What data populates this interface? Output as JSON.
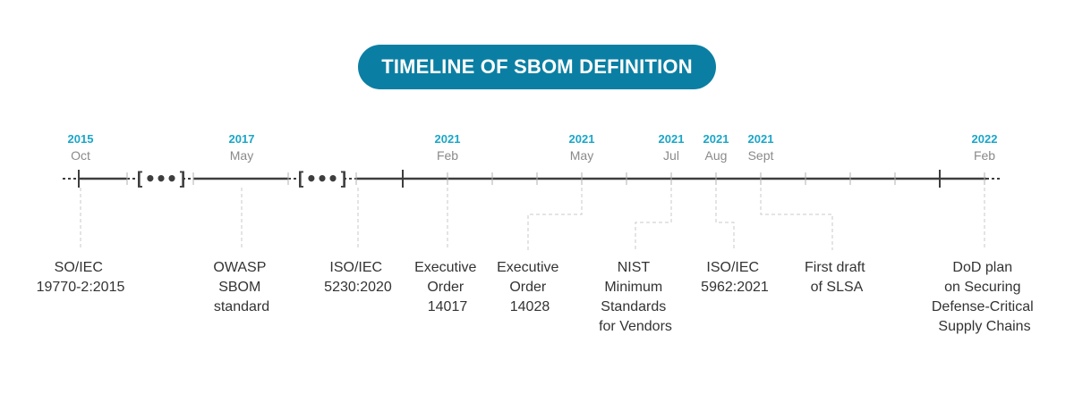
{
  "title": "TIMELINE OF SBOM DEFINITION",
  "gap_marker": "[•••]",
  "dates": [
    {
      "year": "2015",
      "month": "Oct"
    },
    {
      "year": "2017",
      "month": "May"
    },
    {
      "year": "2021",
      "month": "Feb"
    },
    {
      "year": "2021",
      "month": "May"
    },
    {
      "year": "2021",
      "month": "Jul"
    },
    {
      "year": "2021",
      "month": "Aug"
    },
    {
      "year": "2021",
      "month": "Sept"
    },
    {
      "year": "2022",
      "month": "Feb"
    }
  ],
  "events": [
    {
      "lines": [
        "SO/IEC",
        "19770-2:2015"
      ]
    },
    {
      "lines": [
        "OWASP",
        "SBOM",
        "standard"
      ]
    },
    {
      "lines": [
        "ISO/IEC",
        "5230:2020"
      ]
    },
    {
      "lines": [
        "Executive",
        "Order",
        "14017"
      ]
    },
    {
      "lines": [
        "Executive",
        "Order",
        "14028"
      ]
    },
    {
      "lines": [
        "NIST",
        "Minimum",
        "Standards",
        "for Vendors"
      ]
    },
    {
      "lines": [
        "ISO/IEC",
        "5962:2021"
      ]
    },
    {
      "lines": [
        "First draft",
        "of SLSA"
      ]
    },
    {
      "lines": [
        "DoD plan",
        "on Securing",
        "Defense-Critical",
        "Supply Chains"
      ]
    }
  ],
  "colors": {
    "accent": "#0b7fa3",
    "year": "#1aa6c8",
    "axis": "#3e3e3e",
    "month": "#8a8a8a",
    "text": "#333333"
  }
}
